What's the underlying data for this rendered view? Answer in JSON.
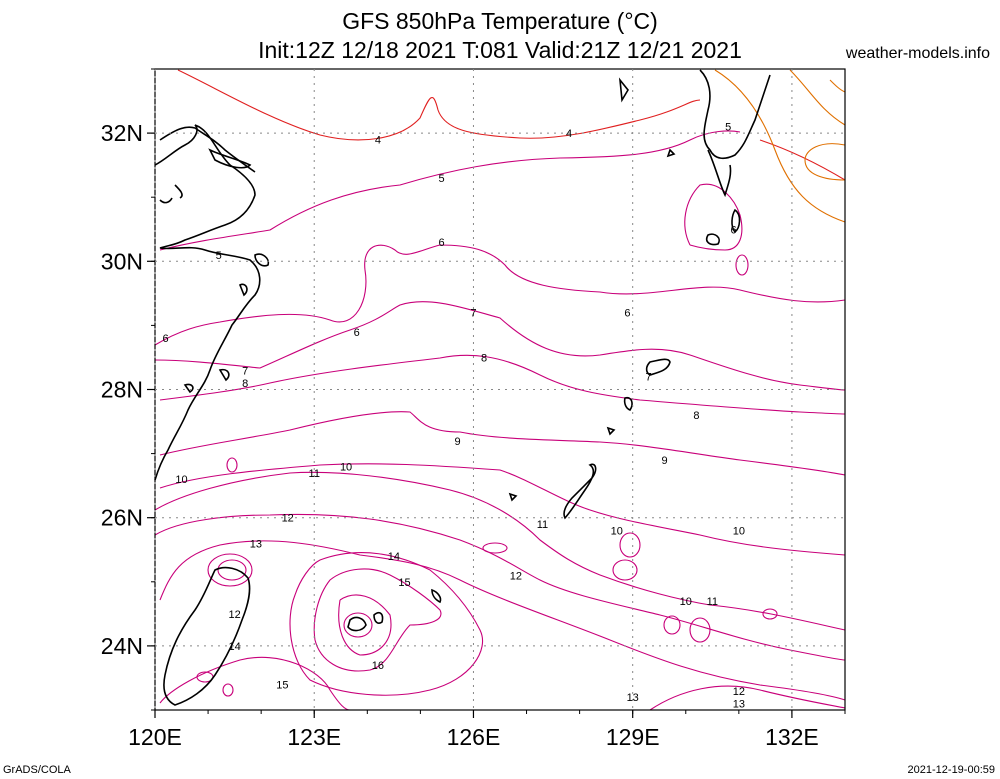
{
  "title": {
    "line1": "GFS 850hPa Temperature (°C)",
    "line2": "Init:12Z 12/18 2021 T:081 Valid:21Z 12/21 2021"
  },
  "site": "weather-models.info",
  "footer": {
    "left": "GrADS/COLA",
    "right": "2021-12-19-00:59"
  },
  "map": {
    "lon_range": [
      120,
      133
    ],
    "lat_range": [
      23,
      33
    ],
    "lat_ticks": [
      {
        "value": 24,
        "label": "24N"
      },
      {
        "value": 26,
        "label": "26N"
      },
      {
        "value": 28,
        "label": "28N"
      },
      {
        "value": 30,
        "label": "30N"
      },
      {
        "value": 32,
        "label": "32N"
      }
    ],
    "lon_ticks": [
      {
        "value": 120,
        "label": "120E"
      },
      {
        "value": 123,
        "label": "123E"
      },
      {
        "value": 126,
        "label": "126E"
      },
      {
        "value": 129,
        "label": "129E"
      },
      {
        "value": 132,
        "label": "132E"
      }
    ],
    "contour_labels": [
      {
        "text": "4",
        "lon": 124.2,
        "lat": 31.9
      },
      {
        "text": "4",
        "lon": 127.8,
        "lat": 32.0
      },
      {
        "text": "5",
        "lon": 125.4,
        "lat": 31.3
      },
      {
        "text": "5",
        "lon": 121.2,
        "lat": 30.1
      },
      {
        "text": "5",
        "lon": 130.8,
        "lat": 32.1
      },
      {
        "text": "6",
        "lon": 125.4,
        "lat": 30.3
      },
      {
        "text": "6",
        "lon": 123.8,
        "lat": 28.9
      },
      {
        "text": "6",
        "lon": 120.2,
        "lat": 28.8
      },
      {
        "text": "6",
        "lon": 128.9,
        "lat": 29.2
      },
      {
        "text": "6",
        "lon": 130.9,
        "lat": 30.5
      },
      {
        "text": "7",
        "lon": 126.0,
        "lat": 29.2
      },
      {
        "text": "7",
        "lon": 121.7,
        "lat": 28.3
      },
      {
        "text": "7",
        "lon": 129.3,
        "lat": 28.2
      },
      {
        "text": "8",
        "lon": 126.2,
        "lat": 28.5
      },
      {
        "text": "8",
        "lon": 121.7,
        "lat": 28.1
      },
      {
        "text": "8",
        "lon": 130.2,
        "lat": 27.6
      },
      {
        "text": "9",
        "lon": 125.7,
        "lat": 27.2
      },
      {
        "text": "9",
        "lon": 129.6,
        "lat": 26.9
      },
      {
        "text": "10",
        "lon": 123.6,
        "lat": 26.8
      },
      {
        "text": "10",
        "lon": 120.5,
        "lat": 26.6
      },
      {
        "text": "10",
        "lon": 128.7,
        "lat": 25.8
      },
      {
        "text": "10",
        "lon": 131.0,
        "lat": 25.8
      },
      {
        "text": "10",
        "lon": 130.0,
        "lat": 24.7
      },
      {
        "text": "11",
        "lon": 123.0,
        "lat": 26.7
      },
      {
        "text": "11",
        "lon": 127.3,
        "lat": 25.9
      },
      {
        "text": "11",
        "lon": 130.5,
        "lat": 24.7
      },
      {
        "text": "12",
        "lon": 122.5,
        "lat": 26.0
      },
      {
        "text": "12",
        "lon": 126.8,
        "lat": 25.1
      },
      {
        "text": "12",
        "lon": 121.5,
        "lat": 24.5
      },
      {
        "text": "12",
        "lon": 131.0,
        "lat": 23.3
      },
      {
        "text": "13",
        "lon": 121.9,
        "lat": 25.6
      },
      {
        "text": "13",
        "lon": 129.0,
        "lat": 23.2
      },
      {
        "text": "13",
        "lon": 131.0,
        "lat": 23.1
      },
      {
        "text": "14",
        "lon": 124.5,
        "lat": 25.4
      },
      {
        "text": "14",
        "lon": 121.5,
        "lat": 24.0
      },
      {
        "text": "15",
        "lon": 124.7,
        "lat": 25.0
      },
      {
        "text": "15",
        "lon": 122.4,
        "lat": 23.4
      },
      {
        "text": "16",
        "lon": 124.2,
        "lat": 23.7
      }
    ]
  }
}
